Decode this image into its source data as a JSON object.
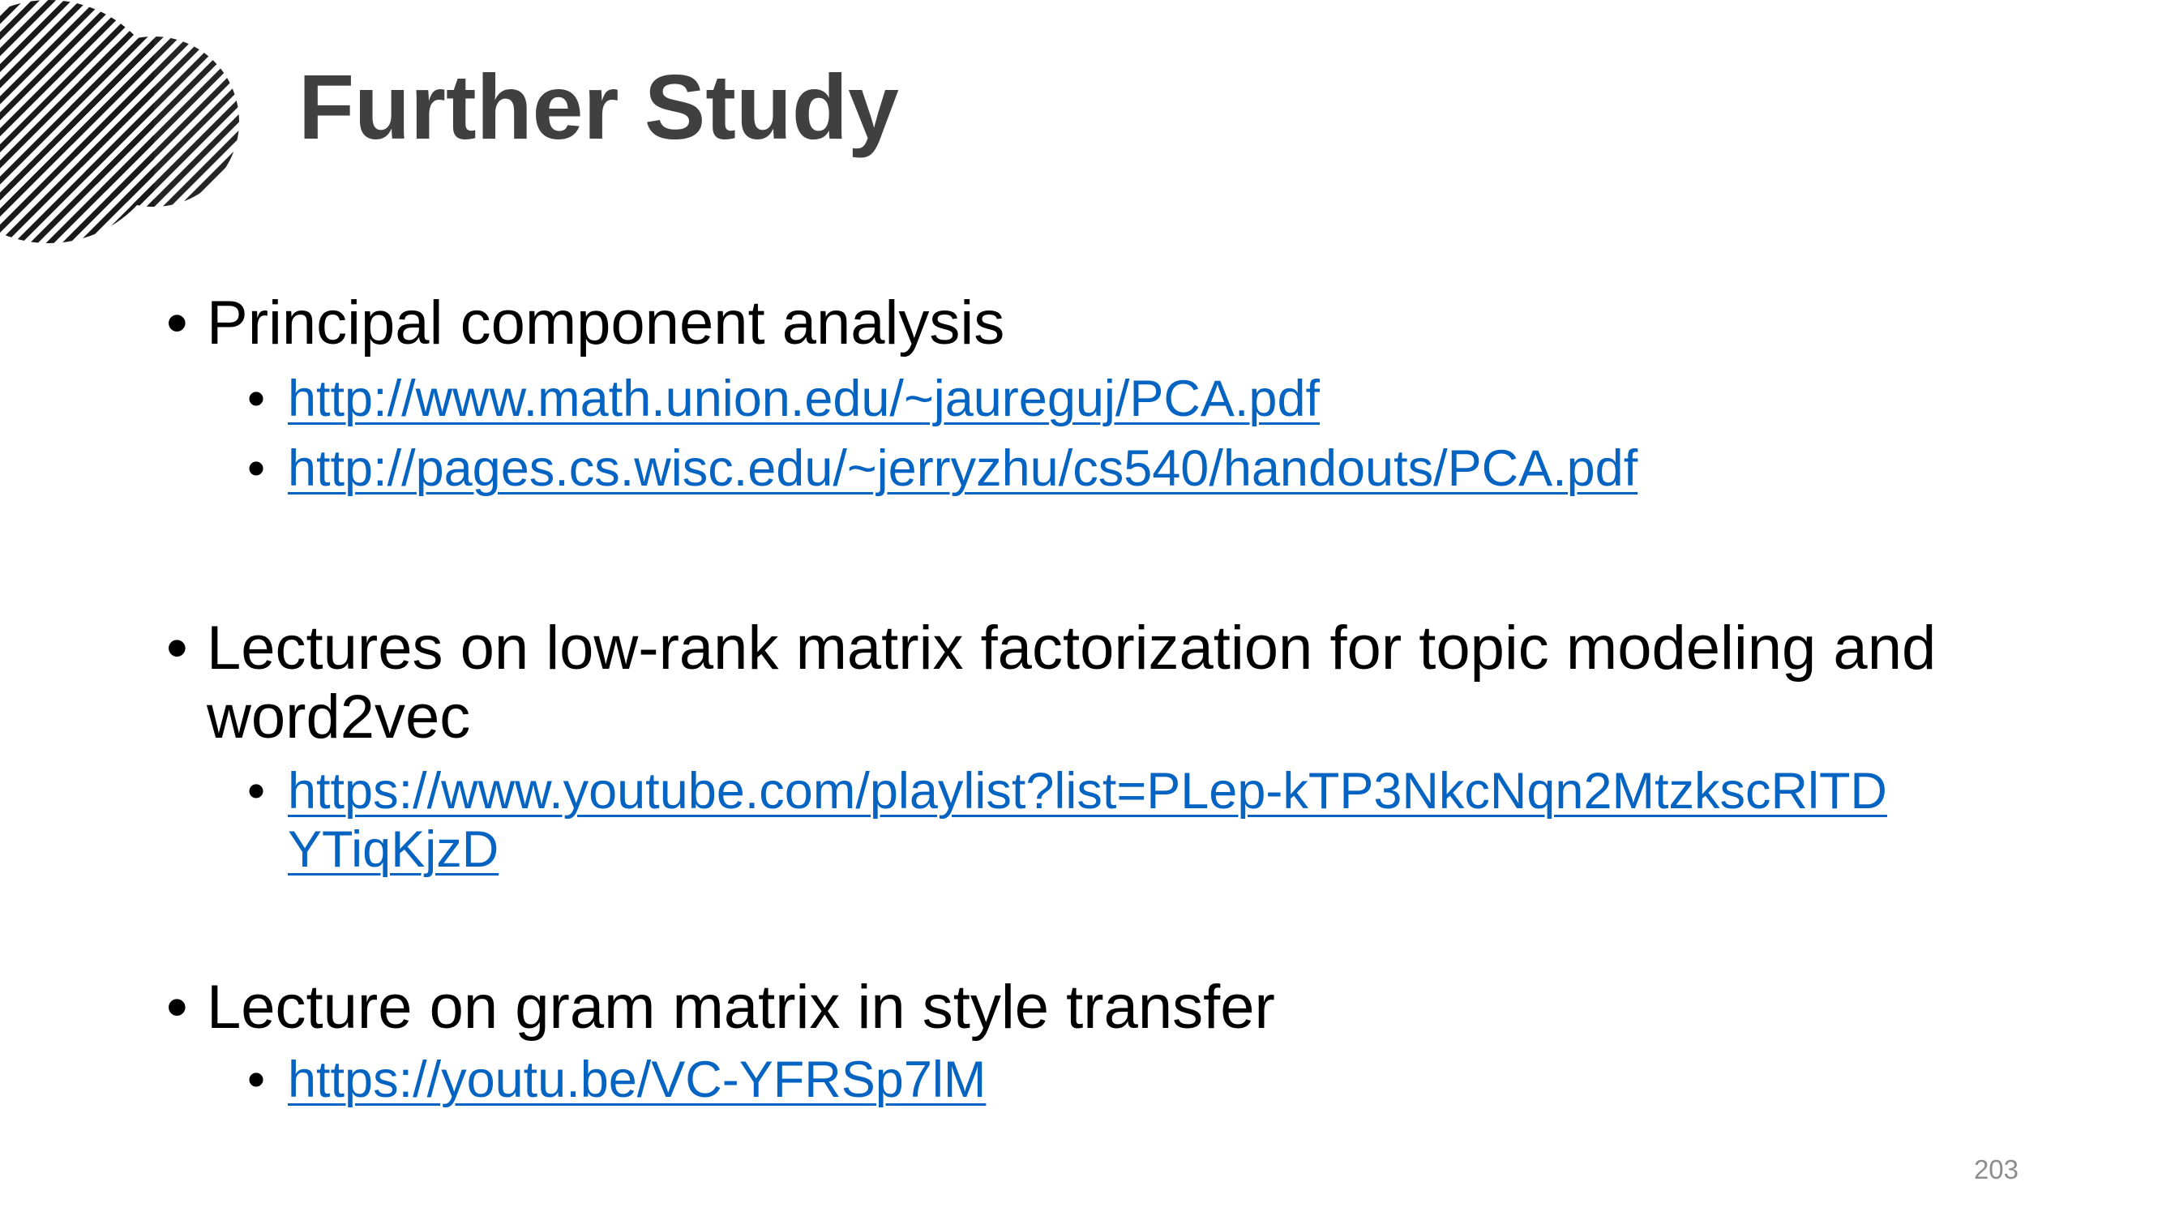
{
  "slide": {
    "title": "Further Study",
    "page_number": "203",
    "accent_color": "#0563C1",
    "title_color": "#404040",
    "logo_icon": "striped-circles-logo-icon"
  },
  "sections": [
    {
      "heading": "Principal component analysis",
      "heading_lines": [
        "Principal component analysis"
      ],
      "links": [
        {
          "lines": [
            "http://www.math.union.edu/~jaureguj/PCA.pdf"
          ]
        },
        {
          "lines": [
            "http://pages.cs.wisc.edu/~jerryzhu/cs540/handouts/PCA.pdf"
          ]
        }
      ]
    },
    {
      "heading_lines": [
        "Lectures on low-rank matrix factorization for topic modeling and",
        "word2vec"
      ],
      "links": [
        {
          "lines": [
            "https://www.youtube.com/playlist?list=PLep-kTP3NkcNqn2MtzkscRlTD",
            "YTiqKjzD"
          ]
        }
      ]
    },
    {
      "heading_lines": [
        "Lecture on gram matrix in style transfer"
      ],
      "links": [
        {
          "lines": [
            "https://youtu.be/VC-YFRSp7lM"
          ]
        }
      ]
    }
  ],
  "bullet_char": "•"
}
